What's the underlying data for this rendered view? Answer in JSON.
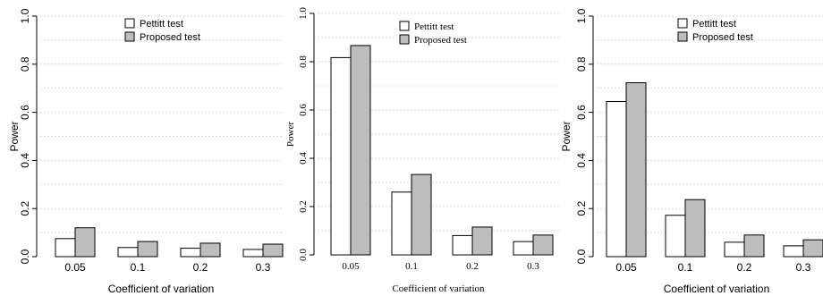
{
  "colors": {
    "pettitt": "#ffffff",
    "proposed": "#bdbdbd",
    "edge": "#000000",
    "grid": "#d9d9d9"
  },
  "chart_data": [
    {
      "type": "bar",
      "categories": [
        "0.05",
        "0.1",
        "0.2",
        "0.3"
      ],
      "series": [
        {
          "name": "Pettitt test",
          "values": [
            0.075,
            0.038,
            0.035,
            0.03
          ]
        },
        {
          "name": "Proposed test",
          "values": [
            0.12,
            0.063,
            0.056,
            0.052
          ]
        }
      ],
      "xlabel": "Coefficient of variation",
      "ylabel": "Power",
      "ylim": [
        0,
        1
      ],
      "yticks": [
        "0.0",
        "0.2",
        "0.4",
        "0.6",
        "0.8",
        "1.0"
      ],
      "grid": true,
      "legend_position": "top-center"
    },
    {
      "type": "bar",
      "categories": [
        "0.05",
        "0.1",
        "0.2",
        "0.3"
      ],
      "series": [
        {
          "name": "Pettitt test",
          "values": [
            0.817,
            0.26,
            0.08,
            0.055
          ]
        },
        {
          "name": "Proposed test",
          "values": [
            0.867,
            0.333,
            0.115,
            0.082
          ]
        }
      ],
      "xlabel": "Coefficient of variation",
      "ylabel": "Power",
      "ylim": [
        0,
        1
      ],
      "yticks": [
        "0.0",
        "0.2",
        "0.4",
        "0.6",
        "0.8",
        "1.0"
      ],
      "grid": true,
      "legend_position": "top-center"
    },
    {
      "type": "bar",
      "categories": [
        "0.05",
        "0.1",
        "0.2",
        "0.3"
      ],
      "series": [
        {
          "name": "Pettitt test",
          "values": [
            0.645,
            0.172,
            0.06,
            0.045
          ]
        },
        {
          "name": "Proposed test",
          "values": [
            0.723,
            0.237,
            0.09,
            0.07
          ]
        }
      ],
      "xlabel": "Coefficient of variation",
      "ylabel": "Power",
      "ylim": [
        0,
        1
      ],
      "yticks": [
        "0.0",
        "0.2",
        "0.4",
        "0.6",
        "0.8",
        "1.0"
      ],
      "grid": true,
      "legend_position": "top-center"
    }
  ]
}
